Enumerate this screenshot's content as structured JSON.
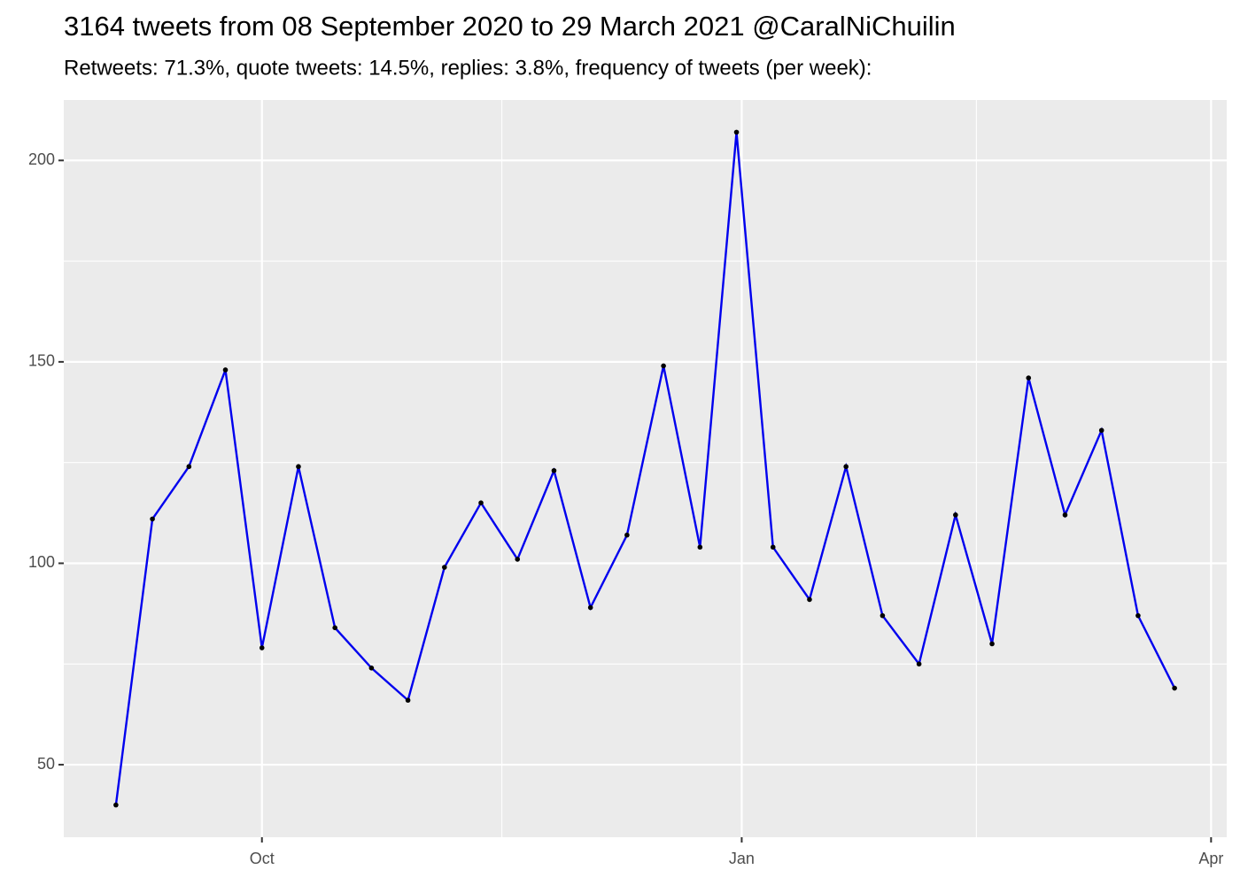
{
  "chart_data": {
    "type": "line",
    "title": "3164 tweets from 08 September 2020 to 29 March 2021 @CaralNiChuilin",
    "subtitle": "Retweets: 71.3%, quote tweets: 14.5%, replies: 3.8%, frequency of tweets (per week):",
    "x": [
      "2020-09-03",
      "2020-09-10",
      "2020-09-17",
      "2020-09-24",
      "2020-10-01",
      "2020-10-08",
      "2020-10-15",
      "2020-10-22",
      "2020-10-29",
      "2020-11-05",
      "2020-11-12",
      "2020-11-19",
      "2020-11-26",
      "2020-12-03",
      "2020-12-10",
      "2020-12-17",
      "2020-12-24",
      "2020-12-31",
      "2021-01-07",
      "2021-01-14",
      "2021-01-21",
      "2021-01-28",
      "2021-02-04",
      "2021-02-11",
      "2021-02-18",
      "2021-02-25",
      "2021-03-04",
      "2021-03-11",
      "2021-03-18",
      "2021-03-25"
    ],
    "series": [
      {
        "color": "#0000ee",
        "values": [
          40,
          111,
          124,
          148,
          79,
          124,
          84,
          74,
          66,
          99,
          115,
          101,
          123,
          89,
          107,
          149,
          104,
          207,
          104,
          91,
          124,
          87,
          75,
          112,
          80,
          146,
          112,
          133,
          87,
          69
        ]
      }
    ],
    "xlim": [
      "2020-08-24",
      "2021-04-04"
    ],
    "xticks": [
      {
        "value": "2020-10-01",
        "label": "Oct"
      },
      {
        "value": "2021-01-01",
        "label": "Jan"
      },
      {
        "value": "2021-04-01",
        "label": "Apr"
      }
    ],
    "ylim": [
      32,
      215
    ],
    "yticks": [
      50,
      100,
      150,
      200
    ],
    "grid": true,
    "background": "#ebebeb",
    "point_color": "#000000"
  }
}
